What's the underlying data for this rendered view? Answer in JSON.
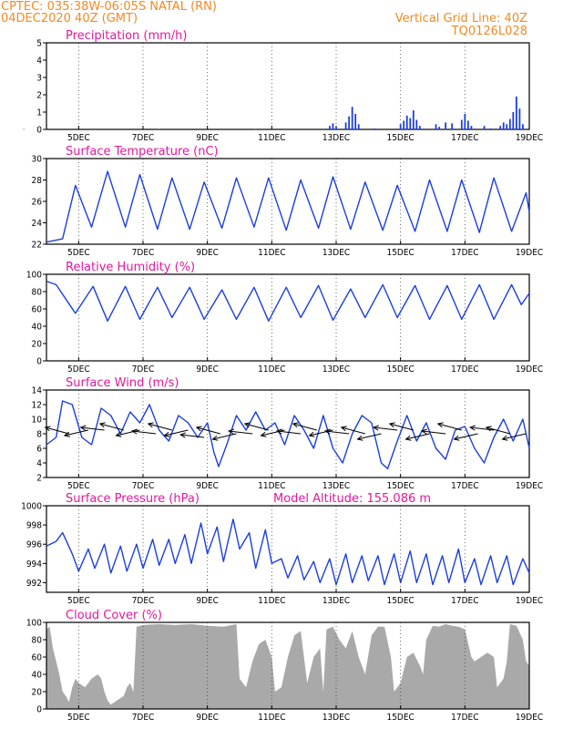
{
  "header": {
    "line1": "CPTEC:   035:38W-06:05S   NATAL (RN)",
    "line2": "04DEC2020 40Z (GMT)",
    "right1": "Vertical Grid Line: 40Z",
    "right2": "TQ0126L028"
  },
  "colors": {
    "header": "#f08a24",
    "title": "#e0199c",
    "series": "#1c3ee0",
    "cloud": "#a9a9a9",
    "grid": "#444444"
  },
  "chart_data": [
    {
      "id": "precip",
      "type": "bar",
      "title": "Precipitation (mm/h)",
      "ylim": [
        0,
        5
      ],
      "yticks": [
        0,
        1,
        2,
        3,
        4,
        5
      ],
      "xticks": [
        "5DEC",
        "7DEC",
        "9DEC",
        "11DEC",
        "13DEC",
        "15DEC",
        "17DEC",
        "19DEC"
      ],
      "points": [
        [
          3.3,
          0.02
        ],
        [
          7.5,
          0.02
        ],
        [
          10.5,
          0.02
        ],
        [
          12.8,
          0.2
        ],
        [
          12.9,
          0.35
        ],
        [
          13.0,
          0.15
        ],
        [
          13.3,
          0.4
        ],
        [
          13.4,
          0.75
        ],
        [
          13.5,
          1.3
        ],
        [
          13.6,
          0.9
        ],
        [
          13.7,
          0.3
        ],
        [
          14.2,
          0.05
        ],
        [
          15.0,
          0.3
        ],
        [
          15.1,
          0.5
        ],
        [
          15.2,
          0.8
        ],
        [
          15.3,
          0.65
        ],
        [
          15.4,
          1.1
        ],
        [
          15.5,
          0.55
        ],
        [
          15.6,
          0.2
        ],
        [
          16.1,
          0.3
        ],
        [
          16.2,
          0.15
        ],
        [
          16.4,
          0.4
        ],
        [
          16.6,
          0.35
        ],
        [
          16.9,
          0.55
        ],
        [
          17.0,
          0.9
        ],
        [
          17.1,
          0.5
        ],
        [
          17.2,
          0.2
        ],
        [
          17.6,
          0.2
        ],
        [
          17.8,
          0.05
        ],
        [
          18.1,
          0.2
        ],
        [
          18.2,
          0.4
        ],
        [
          18.3,
          0.3
        ],
        [
          18.4,
          0.6
        ],
        [
          18.5,
          1.0
        ],
        [
          18.6,
          1.9
        ],
        [
          18.7,
          1.2
        ],
        [
          18.8,
          0.3
        ]
      ]
    },
    {
      "id": "temp",
      "type": "line",
      "title": "Surface Temperature (nC)",
      "ylim": [
        22,
        30
      ],
      "yticks": [
        22,
        24,
        26,
        28,
        30
      ],
      "xticks": [
        "5DEC",
        "7DEC",
        "9DEC",
        "11DEC",
        "13DEC",
        "15DEC",
        "17DEC",
        "19DEC"
      ],
      "points": [
        [
          4.0,
          22.2
        ],
        [
          4.5,
          22.5
        ],
        [
          4.9,
          27.5
        ],
        [
          5.4,
          23.6
        ],
        [
          5.9,
          28.8
        ],
        [
          6.45,
          23.6
        ],
        [
          6.9,
          28.5
        ],
        [
          7.45,
          23.4
        ],
        [
          7.9,
          28.2
        ],
        [
          8.45,
          23.4
        ],
        [
          8.9,
          27.8
        ],
        [
          9.45,
          23.5
        ],
        [
          9.9,
          28.2
        ],
        [
          10.45,
          23.6
        ],
        [
          10.9,
          28.2
        ],
        [
          11.45,
          23.3
        ],
        [
          11.9,
          28.0
        ],
        [
          12.45,
          23.5
        ],
        [
          12.9,
          28.3
        ],
        [
          13.45,
          23.4
        ],
        [
          13.9,
          27.8
        ],
        [
          14.45,
          23.3
        ],
        [
          14.9,
          27.5
        ],
        [
          15.45,
          23.2
        ],
        [
          15.9,
          28.0
        ],
        [
          16.45,
          23.2
        ],
        [
          16.9,
          28.0
        ],
        [
          17.45,
          23.1
        ],
        [
          17.9,
          28.2
        ],
        [
          18.45,
          23.2
        ],
        [
          18.9,
          26.8
        ],
        [
          19.0,
          25.0
        ]
      ]
    },
    {
      "id": "rh",
      "type": "line",
      "title": "Relative Humidity (%)",
      "ylim": [
        0,
        100
      ],
      "yticks": [
        0,
        20,
        40,
        60,
        80,
        100
      ],
      "xticks": [
        "5DEC",
        "7DEC",
        "9DEC",
        "11DEC",
        "13DEC",
        "15DEC",
        "17DEC",
        "19DEC"
      ],
      "points": [
        [
          4.0,
          92
        ],
        [
          4.3,
          88
        ],
        [
          4.9,
          55
        ],
        [
          5.45,
          86
        ],
        [
          5.9,
          46
        ],
        [
          6.45,
          86
        ],
        [
          6.9,
          48
        ],
        [
          7.45,
          85
        ],
        [
          7.9,
          50
        ],
        [
          8.45,
          85
        ],
        [
          8.9,
          48
        ],
        [
          9.45,
          82
        ],
        [
          9.9,
          48
        ],
        [
          10.45,
          85
        ],
        [
          10.9,
          46
        ],
        [
          11.45,
          85
        ],
        [
          11.9,
          50
        ],
        [
          12.45,
          87
        ],
        [
          12.9,
          47
        ],
        [
          13.45,
          83
        ],
        [
          13.9,
          50
        ],
        [
          14.45,
          88
        ],
        [
          14.9,
          50
        ],
        [
          15.45,
          87
        ],
        [
          15.9,
          48
        ],
        [
          16.45,
          87
        ],
        [
          16.9,
          48
        ],
        [
          17.45,
          88
        ],
        [
          17.9,
          48
        ],
        [
          18.45,
          88
        ],
        [
          18.75,
          65
        ],
        [
          19.0,
          78
        ]
      ]
    },
    {
      "id": "wind",
      "type": "line",
      "title": "Surface Wind (m/s)",
      "ylim": [
        2,
        14
      ],
      "yticks": [
        2,
        4,
        6,
        8,
        10,
        12,
        14
      ],
      "xticks": [
        "5DEC",
        "7DEC",
        "9DEC",
        "11DEC",
        "13DEC",
        "15DEC",
        "17DEC",
        "19DEC"
      ],
      "points": [
        [
          4.0,
          6.5
        ],
        [
          4.3,
          7.5
        ],
        [
          4.5,
          12.5
        ],
        [
          4.8,
          12.0
        ],
        [
          5.1,
          7.5
        ],
        [
          5.4,
          6.5
        ],
        [
          5.7,
          11.5
        ],
        [
          6.0,
          10.5
        ],
        [
          6.3,
          8.0
        ],
        [
          6.6,
          11.0
        ],
        [
          6.9,
          9.5
        ],
        [
          7.2,
          12.0
        ],
        [
          7.5,
          8.5
        ],
        [
          7.8,
          7.0
        ],
        [
          8.1,
          10.5
        ],
        [
          8.4,
          9.5
        ],
        [
          8.7,
          7.5
        ],
        [
          9.0,
          9.5
        ],
        [
          9.2,
          5.5
        ],
        [
          9.35,
          3.5
        ],
        [
          9.6,
          6.5
        ],
        [
          9.9,
          10.5
        ],
        [
          10.2,
          8.5
        ],
        [
          10.5,
          11.0
        ],
        [
          10.8,
          8.5
        ],
        [
          11.1,
          9.5
        ],
        [
          11.4,
          6.5
        ],
        [
          11.7,
          10.5
        ],
        [
          12.0,
          8.5
        ],
        [
          12.3,
          6.0
        ],
        [
          12.6,
          10.5
        ],
        [
          12.9,
          6.0
        ],
        [
          13.2,
          4.0
        ],
        [
          13.5,
          8.0
        ],
        [
          13.8,
          10.5
        ],
        [
          14.1,
          9.5
        ],
        [
          14.4,
          4.0
        ],
        [
          14.6,
          3.2
        ],
        [
          14.9,
          7.0
        ],
        [
          15.2,
          10.5
        ],
        [
          15.5,
          7.0
        ],
        [
          15.8,
          9.5
        ],
        [
          16.1,
          6.0
        ],
        [
          16.4,
          4.5
        ],
        [
          16.7,
          8.5
        ],
        [
          17.0,
          9.0
        ],
        [
          17.3,
          6.0
        ],
        [
          17.6,
          4.0
        ],
        [
          17.9,
          7.5
        ],
        [
          18.2,
          10.0
        ],
        [
          18.5,
          7.0
        ],
        [
          18.8,
          10.0
        ],
        [
          19.0,
          6.0
        ]
      ],
      "arrows": [
        [
          4.7,
          8.0
        ],
        [
          5.3,
          8.5
        ],
        [
          5.8,
          8.5
        ],
        [
          6.4,
          8.5
        ],
        [
          6.9,
          8.5
        ],
        [
          7.4,
          8.0
        ],
        [
          7.9,
          8.5
        ],
        [
          8.4,
          8.5
        ],
        [
          8.9,
          7.5
        ],
        [
          9.4,
          8.0
        ],
        [
          9.9,
          8.0
        ],
        [
          10.4,
          8.0
        ],
        [
          10.9,
          8.5
        ],
        [
          11.4,
          8.5
        ],
        [
          11.9,
          8.0
        ],
        [
          12.4,
          8.5
        ],
        [
          12.9,
          8.5
        ],
        [
          13.4,
          8.0
        ],
        [
          13.9,
          8.0
        ],
        [
          14.4,
          8.0
        ],
        [
          14.9,
          8.5
        ],
        [
          15.4,
          8.5
        ],
        [
          15.9,
          8.0
        ],
        [
          16.4,
          8.0
        ],
        [
          16.9,
          8.5
        ],
        [
          17.4,
          8.0
        ],
        [
          17.9,
          8.5
        ],
        [
          18.4,
          8.0
        ],
        [
          18.9,
          8.0
        ]
      ]
    },
    {
      "id": "pres",
      "type": "line",
      "title": "Surface Pressure (hPa)",
      "subtitle": "Model Altitude: 155.086 m",
      "ylim": [
        991,
        1000
      ],
      "yticks": [
        992,
        994,
        996,
        998,
        1000
      ],
      "xticks": [
        "5DEC",
        "7DEC",
        "9DEC",
        "11DEC",
        "13DEC",
        "15DEC",
        "17DEC",
        "19DEC"
      ],
      "points": [
        [
          4.0,
          995.8
        ],
        [
          4.3,
          996.3
        ],
        [
          4.5,
          997.2
        ],
        [
          4.8,
          995.0
        ],
        [
          5.0,
          993.2
        ],
        [
          5.3,
          995.5
        ],
        [
          5.5,
          993.5
        ],
        [
          5.8,
          996.0
        ],
        [
          6.0,
          993.0
        ],
        [
          6.3,
          995.8
        ],
        [
          6.5,
          993.2
        ],
        [
          6.8,
          996.0
        ],
        [
          7.0,
          993.5
        ],
        [
          7.3,
          996.5
        ],
        [
          7.5,
          993.8
        ],
        [
          7.8,
          996.5
        ],
        [
          8.0,
          994.0
        ],
        [
          8.3,
          997.0
        ],
        [
          8.5,
          994.0
        ],
        [
          8.8,
          998.2
        ],
        [
          9.0,
          995.0
        ],
        [
          9.3,
          997.8
        ],
        [
          9.5,
          994.2
        ],
        [
          9.8,
          998.6
        ],
        [
          10.0,
          995.5
        ],
        [
          10.3,
          997.2
        ],
        [
          10.5,
          993.5
        ],
        [
          10.8,
          997.5
        ],
        [
          11.0,
          994.0
        ],
        [
          11.3,
          994.5
        ],
        [
          11.5,
          992.5
        ],
        [
          11.8,
          994.8
        ],
        [
          12.0,
          992.3
        ],
        [
          12.3,
          994.2
        ],
        [
          12.5,
          992.0
        ],
        [
          12.8,
          994.5
        ],
        [
          13.0,
          991.8
        ],
        [
          13.3,
          995.0
        ],
        [
          13.5,
          992.0
        ],
        [
          13.8,
          994.8
        ],
        [
          14.0,
          992.2
        ],
        [
          14.3,
          994.8
        ],
        [
          14.5,
          991.8
        ],
        [
          14.8,
          995.0
        ],
        [
          15.0,
          992.0
        ],
        [
          15.3,
          995.3
        ],
        [
          15.5,
          992.0
        ],
        [
          15.8,
          995.0
        ],
        [
          16.0,
          991.8
        ],
        [
          16.3,
          994.8
        ],
        [
          16.5,
          992.0
        ],
        [
          16.8,
          995.5
        ],
        [
          17.0,
          992.0
        ],
        [
          17.3,
          994.5
        ],
        [
          17.5,
          991.8
        ],
        [
          17.8,
          994.8
        ],
        [
          18.0,
          992.0
        ],
        [
          18.3,
          994.8
        ],
        [
          18.5,
          991.8
        ],
        [
          18.8,
          994.5
        ],
        [
          19.0,
          993.0
        ]
      ]
    },
    {
      "id": "cloud",
      "type": "area",
      "title": "Cloud Cover (%)",
      "ylim": [
        0,
        100
      ],
      "yticks": [
        0,
        20,
        40,
        60,
        80,
        100
      ],
      "xticks": [
        "5DEC",
        "7DEC",
        "9DEC",
        "11DEC",
        "13DEC",
        "15DEC",
        "17DEC",
        "19DEC"
      ],
      "points": [
        [
          4.0,
          92
        ],
        [
          4.1,
          95
        ],
        [
          4.2,
          70
        ],
        [
          4.3,
          55
        ],
        [
          4.4,
          40
        ],
        [
          4.5,
          20
        ],
        [
          4.6,
          15
        ],
        [
          4.7,
          8
        ],
        [
          4.8,
          25
        ],
        [
          4.9,
          35
        ],
        [
          5.0,
          30
        ],
        [
          5.2,
          25
        ],
        [
          5.4,
          35
        ],
        [
          5.6,
          40
        ],
        [
          5.7,
          35
        ],
        [
          5.8,
          20
        ],
        [
          5.9,
          10
        ],
        [
          6.0,
          5
        ],
        [
          6.2,
          10
        ],
        [
          6.4,
          15
        ],
        [
          6.5,
          25
        ],
        [
          6.6,
          30
        ],
        [
          6.7,
          20
        ],
        [
          6.8,
          95
        ],
        [
          7.0,
          97
        ],
        [
          7.5,
          98
        ],
        [
          8.0,
          97
        ],
        [
          8.5,
          98
        ],
        [
          9.0,
          96
        ],
        [
          9.5,
          95
        ],
        [
          9.9,
          98
        ],
        [
          10.0,
          35
        ],
        [
          10.2,
          25
        ],
        [
          10.4,
          55
        ],
        [
          10.6,
          75
        ],
        [
          10.8,
          80
        ],
        [
          11.0,
          60
        ],
        [
          11.1,
          20
        ],
        [
          11.3,
          25
        ],
        [
          11.5,
          60
        ],
        [
          11.7,
          85
        ],
        [
          11.9,
          90
        ],
        [
          12.1,
          30
        ],
        [
          12.3,
          60
        ],
        [
          12.5,
          70
        ],
        [
          12.6,
          20
        ],
        [
          12.7,
          92
        ],
        [
          12.9,
          95
        ],
        [
          13.1,
          80
        ],
        [
          13.3,
          70
        ],
        [
          13.5,
          90
        ],
        [
          13.7,
          60
        ],
        [
          13.9,
          40
        ],
        [
          14.1,
          85
        ],
        [
          14.3,
          95
        ],
        [
          14.5,
          95
        ],
        [
          14.7,
          60
        ],
        [
          14.8,
          20
        ],
        [
          15.0,
          30
        ],
        [
          15.2,
          60
        ],
        [
          15.4,
          65
        ],
        [
          15.6,
          50
        ],
        [
          15.7,
          40
        ],
        [
          15.8,
          80
        ],
        [
          16.0,
          96
        ],
        [
          16.2,
          95
        ],
        [
          16.4,
          98
        ],
        [
          16.6,
          96
        ],
        [
          16.8,
          95
        ],
        [
          17.0,
          92
        ],
        [
          17.2,
          60
        ],
        [
          17.3,
          55
        ],
        [
          17.5,
          60
        ],
        [
          17.7,
          65
        ],
        [
          17.9,
          60
        ],
        [
          18.0,
          25
        ],
        [
          18.2,
          35
        ],
        [
          18.3,
          55
        ],
        [
          18.4,
          98
        ],
        [
          18.6,
          96
        ],
        [
          18.8,
          80
        ],
        [
          18.9,
          55
        ],
        [
          19.0,
          50
        ]
      ]
    }
  ]
}
